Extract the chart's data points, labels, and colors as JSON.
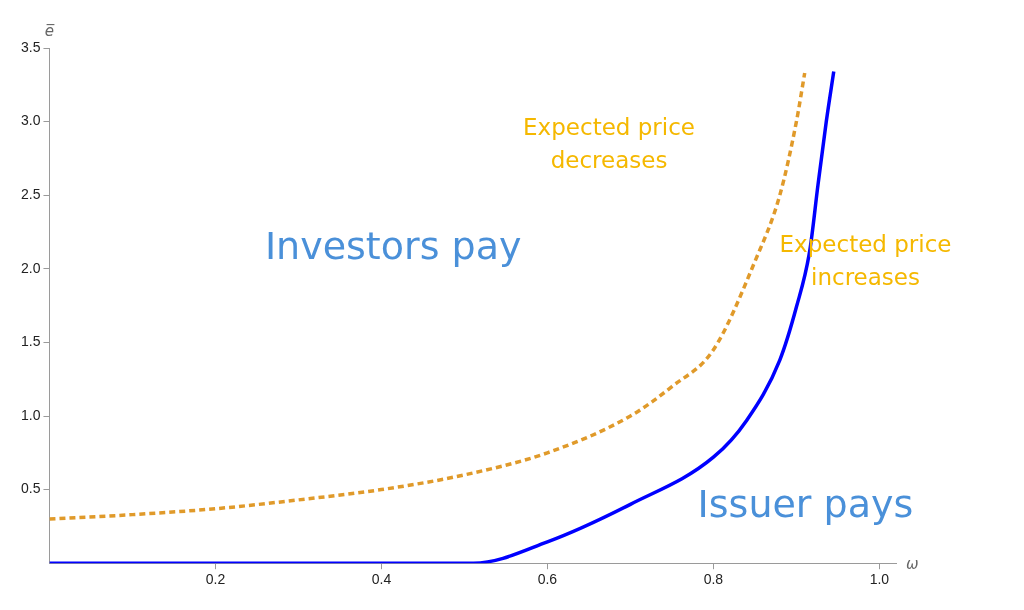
{
  "chart_data": {
    "type": "line",
    "xlabel": "ω",
    "ylabel": "e̅",
    "xlim": [
      0,
      1.02
    ],
    "ylim": [
      0,
      3.5
    ],
    "xticks": [
      0.2,
      0.4,
      0.6,
      0.8,
      {
        "value": 1,
        "label": "1.0"
      }
    ],
    "yticks": [
      0.5,
      {
        "value": 1,
        "label": "1.0"
      },
      1.5,
      {
        "value": 2,
        "label": "2.0"
      },
      2.5,
      {
        "value": 3,
        "label": "3.0"
      },
      3.5
    ],
    "grid": false,
    "legend": false,
    "marker": "none",
    "series": [
      {
        "color": "#e09a2a",
        "line_style": "dashed",
        "x": [
          0,
          0.1,
          0.2,
          0.3,
          0.4,
          0.5,
          0.6,
          0.7,
          0.75,
          0.8,
          0.85,
          0.88,
          0.9,
          0.91
        ],
        "values": [
          0.3,
          0.33,
          0.37,
          0.43,
          0.5,
          0.6,
          0.75,
          1.0,
          1.2,
          1.45,
          2.05,
          2.5,
          3.0,
          3.33
        ]
      },
      {
        "color": "#0000ff",
        "line_style": "solid",
        "x": [
          0,
          0.511,
          0.6,
          0.7,
          0.8,
          0.84,
          0.88,
          0.9,
          0.916,
          0.926,
          0.936,
          0.945
        ],
        "values": [
          0,
          0,
          0.145,
          0.4,
          0.72,
          0.97,
          1.38,
          1.74,
          2.12,
          2.57,
          3.0,
          3.34
        ]
      }
    ],
    "annotations": [
      "Investors pay",
      "Issuer pays",
      "Expected price decreases",
      "Expected price increases"
    ]
  }
}
